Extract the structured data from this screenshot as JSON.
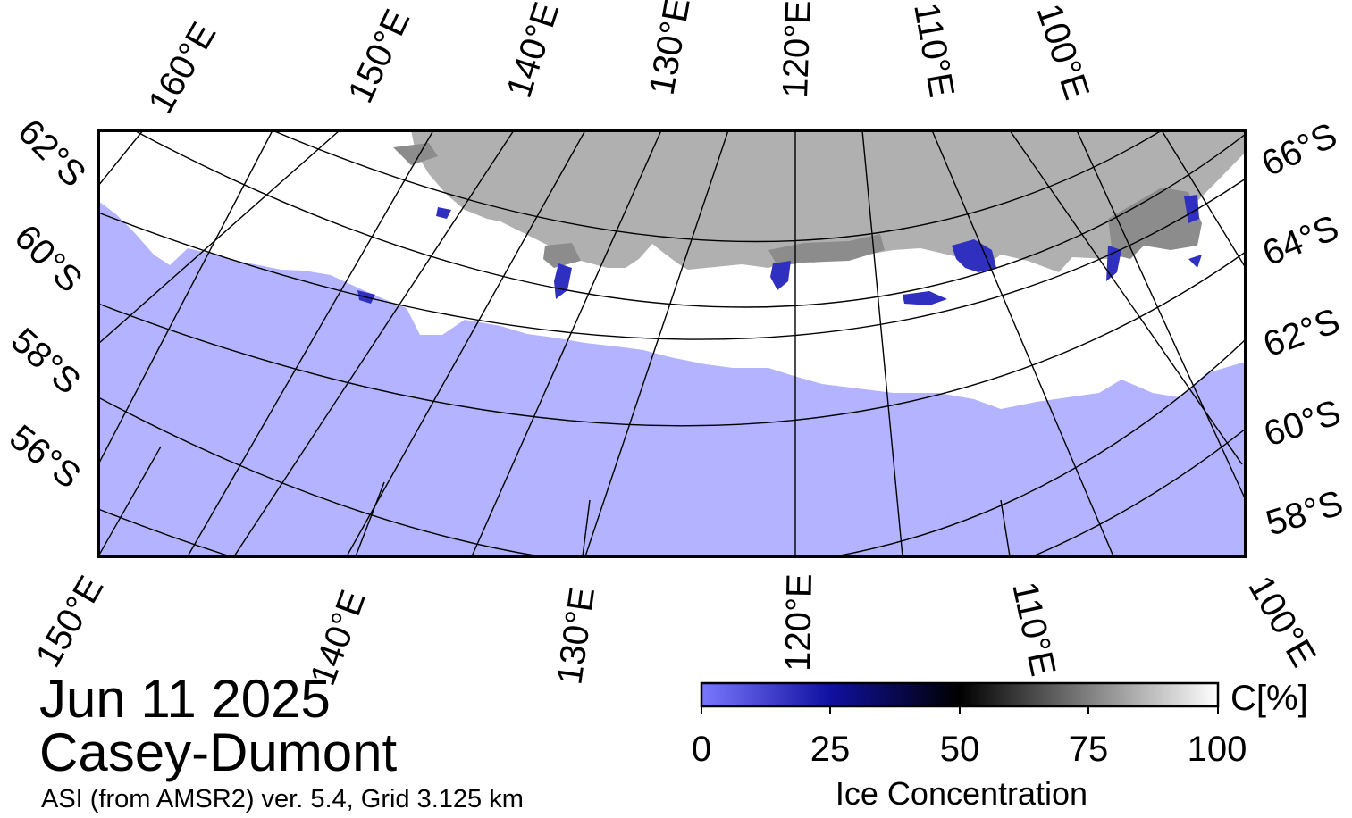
{
  "map": {
    "region": "Casey-Dumont",
    "date": "Jun 11 2025",
    "source": "ASI (from AMSR2) ver. 5.4,  Grid 3.125 km",
    "colors": {
      "open_water": "#b3b3ff",
      "land": "#b0b0b0",
      "ice_shelf": "#8c8c8c",
      "ice_pack": "#ffffff"
    },
    "top_longitude_labels": [
      "160°E",
      "150°E",
      "140°E",
      "130°E",
      "120°E",
      "110°E",
      "100°E"
    ],
    "bottom_longitude_labels": [
      "150°E",
      "140°E",
      "130°E",
      "120°E",
      "110°E",
      "100°E"
    ],
    "left_latitude_labels": [
      "62°S",
      "60°S",
      "58°S",
      "56°S"
    ],
    "right_latitude_labels": [
      "66°S",
      "64°S",
      "62°S",
      "60°S",
      "58°S"
    ]
  },
  "colorbar": {
    "title": "Ice Concentration",
    "unit_label": "C[%]",
    "ticks": [
      "0",
      "25",
      "50",
      "75",
      "100"
    ],
    "scale_colors": [
      "#7070ff",
      "#0000a0",
      "#000000",
      "#808080",
      "#ffffff"
    ]
  }
}
